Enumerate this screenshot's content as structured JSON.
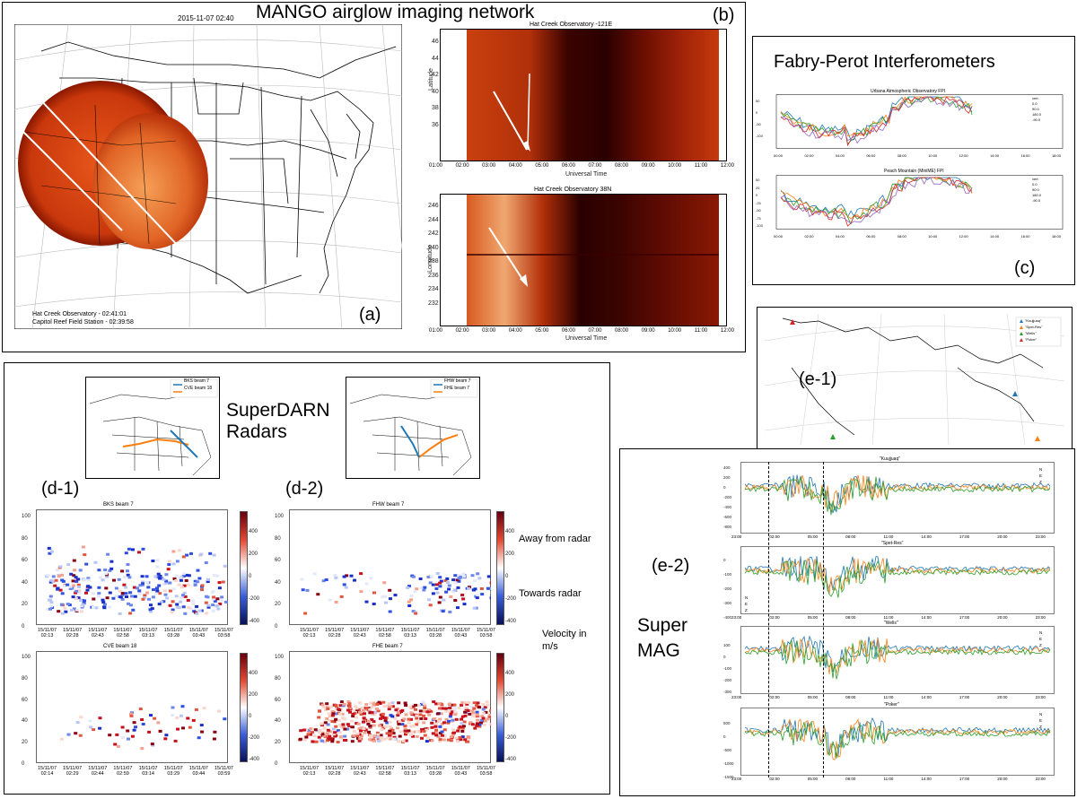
{
  "figure": {
    "panel_a": {
      "heading": "MANGO airglow imaging network",
      "timestamp": "2015-11-07 02:40",
      "caption_line1": "Hat Creek Observatory - 02:41:01",
      "caption_line2": "Capitol Reef Field Station - 02:39:58",
      "label": "(a)"
    },
    "panel_b": {
      "label": "(b)",
      "top_title": "Hat Creek Observatory -121E",
      "top_ylabel": "Latitude",
      "top_yticks": [
        "46",
        "44",
        "42",
        "40",
        "38",
        "36"
      ],
      "bottom_title": "Hat Creek Observatory 38N",
      "bottom_ylabel": "Longitude",
      "bottom_yticks": [
        "246",
        "244",
        "242",
        "240",
        "238",
        "236",
        "234",
        "232"
      ],
      "xticks": [
        "01:00",
        "02:00",
        "03:00",
        "04:00",
        "05:00",
        "06:00",
        "07:00",
        "08:00",
        "09:00",
        "10:00",
        "11:00",
        "12:00"
      ],
      "xlabel": "Universal Time"
    },
    "panel_c": {
      "heading": "Fabry-Perot Interferometers",
      "label": "(c)",
      "top_title": "Urbana Atmospheric Observatory FPI",
      "bottom_title": "Peach Mountain (MiniME) FPI",
      "legend": [
        "vert",
        "0.0",
        "90.0",
        "180.0",
        "-90.0"
      ],
      "top_yticks": [
        "50",
        "0",
        "-50",
        "-100"
      ],
      "bottom_yticks": [
        "50",
        "25",
        "0",
        "-25",
        "-50",
        "-75",
        "-100"
      ],
      "xticks": [
        "00:00",
        "02:00",
        "04:00",
        "06:00",
        "08:00",
        "10:00",
        "12:00",
        "14:00",
        "16:00",
        "18:00"
      ]
    },
    "panel_d": {
      "heading_line1": "SuperDARN",
      "heading_line2": "Radars",
      "label_d1": "(d-1)",
      "label_d2": "(d-2)",
      "map1_legend": [
        "BKS beam 7",
        "CVE beam 18"
      ],
      "map2_legend": [
        "FHW beam 7",
        "FHE beam 7"
      ],
      "plot_titles": [
        "BKS beam 7",
        "FHW beam 7",
        "CVE beam 18",
        "FHE beam 7"
      ],
      "yticks": [
        "100",
        "80",
        "60",
        "40",
        "20",
        "0"
      ],
      "xticks_a": [
        "15/11/07\n02:13",
        "15/11/07\n02:28",
        "15/11/07\n02:43",
        "15/11/07\n02:58",
        "15/11/07\n03:13",
        "15/11/07\n03:28",
        "15/11/07\n03:43",
        "15/11/07\n03:58"
      ],
      "xticks_b": [
        "15/11/07\n02:14",
        "15/11/07\n02:29",
        "15/11/07\n02:44",
        "15/11/07\n02:59",
        "15/11/07\n03:14",
        "15/11/07\n03:29",
        "15/11/07\n03:44",
        "15/11/07\n03:59"
      ],
      "cbar_ticks": [
        "400",
        "200",
        "0",
        "-200",
        "-400"
      ],
      "away": "Away from radar",
      "towards": "Towards radar",
      "velocity_line1": "Velocity in",
      "velocity_line2": "m/s"
    },
    "panel_e": {
      "label_e1": "(e-1)",
      "label_e2": "(e-2)",
      "heading_line1": "Super",
      "heading_line2": "MAG",
      "map_legend": [
        "\"Kuujjuaq\"",
        "\"Spet-Res\"",
        "\"Wells\"",
        "\"Poker\""
      ],
      "station_titles": [
        "\"Kuujjuaq\"",
        "\"Spet-Res\"",
        "\"Wells\"",
        "\"Poker\""
      ],
      "legend": [
        "N",
        "E",
        "Z"
      ],
      "xticks": [
        "23:00",
        "02:00",
        "05:00",
        "08:00",
        "11:00",
        "14:00",
        "17:00",
        "20:00",
        "23:00"
      ],
      "kuujjuaq_yticks": [
        "400",
        "200",
        "0",
        "-200",
        "-400",
        "-600",
        "-800"
      ],
      "spet_yticks": [
        "0",
        "-100",
        "-200",
        "-300",
        "-400"
      ],
      "wells_yticks": [
        "100",
        "0",
        "-100",
        "-200",
        "-300"
      ],
      "poker_yticks": [
        "500",
        "0",
        "-500",
        "-1000",
        "-1500"
      ]
    }
  },
  "colors": {
    "fpi": [
      "#1f77b4",
      "#ff7f0e",
      "#2ca02c",
      "#d62728",
      "#9467bd"
    ],
    "mag": [
      "#1f77b4",
      "#ff7f0e",
      "#2ca02c"
    ],
    "keogram_dark": "#2a0000",
    "keogram_bright": "#d24a10"
  }
}
